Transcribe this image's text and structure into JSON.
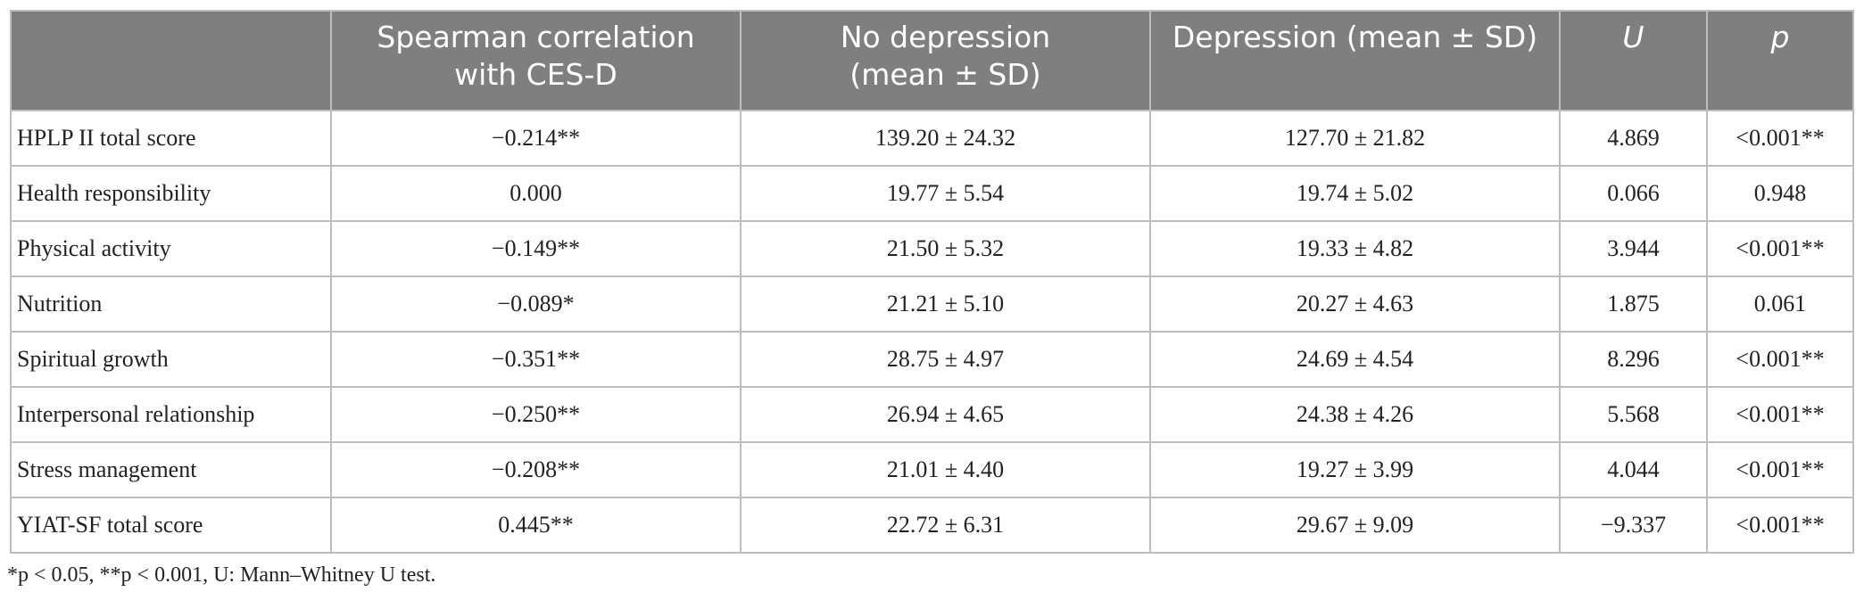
{
  "table": {
    "header": [
      [],
      [
        "Spearman correlation",
        "with CES-D"
      ],
      [
        "No depression",
        "(mean ± SD)"
      ],
      [
        "Depression (mean ± SD)"
      ],
      [
        "U"
      ],
      [
        "p"
      ]
    ],
    "rows": [
      [
        "HPLP II total score",
        "−0.214**",
        "139.20 ± 24.32",
        "127.70 ± 21.82",
        "4.869",
        "<0.001**"
      ],
      [
        "Health responsibility",
        "0.000",
        "19.77 ± 5.54",
        "19.74 ± 5.02",
        "0.066",
        "0.948"
      ],
      [
        "Physical activity",
        "−0.149**",
        "21.50 ± 5.32",
        "19.33 ± 4.82",
        "3.944",
        "<0.001**"
      ],
      [
        "Nutrition",
        "−0.089*",
        "21.21 ± 5.10",
        "20.27 ± 4.63",
        "1.875",
        "0.061"
      ],
      [
        "Spiritual growth",
        "−0.351**",
        "28.75 ± 4.97",
        "24.69 ± 4.54",
        "8.296",
        "<0.001**"
      ],
      [
        "Interpersonal relationship",
        "−0.250**",
        "26.94 ± 4.65",
        "24.38 ± 4.26",
        "5.568",
        "<0.001**"
      ],
      [
        "Stress management",
        "−0.208**",
        "21.01 ± 4.40",
        "19.27 ± 3.99",
        "4.044",
        "<0.001**"
      ],
      [
        "YIAT-SF total score",
        "0.445**",
        "22.72 ± 6.31",
        "29.67 ± 9.09",
        "−9.337",
        "<0.001**"
      ]
    ],
    "footnote": "*p < 0.05, **p < 0.001, U: Mann–Whitney U test."
  }
}
